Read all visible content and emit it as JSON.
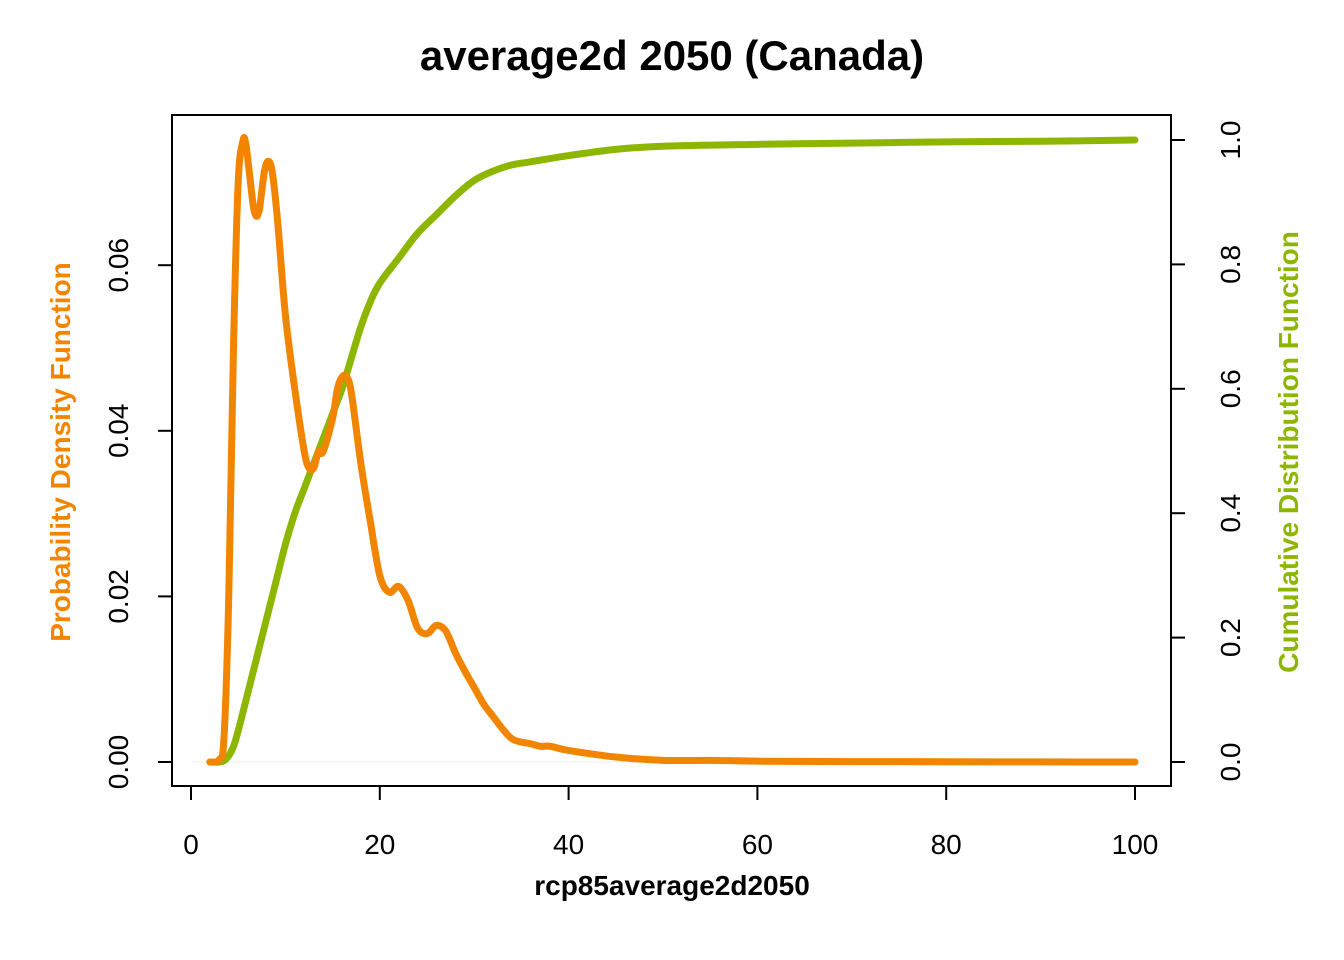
{
  "chart_data": {
    "type": "line",
    "title": "average2d 2050 (Canada)",
    "xlabel": "rcp85average2d2050",
    "ylabel_left": "Probability Density Function",
    "ylabel_right": "Cumulative Distribution Function",
    "colors": {
      "pdf": "#F28500",
      "cdf": "#8DB600",
      "axis": "#000000"
    },
    "xlim": [
      0,
      100
    ],
    "ylim_left": [
      0,
      0.075
    ],
    "ylim_right": [
      0,
      1.0
    ],
    "x_ticks": [
      "0",
      "20",
      "40",
      "60",
      "80",
      "100"
    ],
    "y_ticks_left": [
      "0.00",
      "0.02",
      "0.04",
      "0.06"
    ],
    "y_ticks_right": [
      "0.0",
      "0.2",
      "0.4",
      "0.6",
      "0.8",
      "1.0"
    ],
    "grid": false,
    "series": [
      {
        "name": "Probability Density Function",
        "axis": "left",
        "x": [
          2,
          3,
          3.5,
          4,
          4.5,
          5,
          5.5,
          5.8,
          6.2,
          6.7,
          7.2,
          7.8,
          8.3,
          8.7,
          9.2,
          10,
          11,
          12,
          12.5,
          13,
          13.5,
          14,
          15,
          15.5,
          16,
          16.5,
          17,
          18,
          19,
          20,
          21,
          22,
          23,
          24,
          25,
          26,
          27,
          28,
          29,
          30,
          31,
          32,
          33,
          34,
          35,
          36,
          37,
          38,
          40,
          45,
          50,
          55,
          60,
          70,
          80,
          90,
          100
        ],
        "y": [
          0,
          0.0003,
          0.003,
          0.02,
          0.05,
          0.07,
          0.075,
          0.0747,
          0.071,
          0.0665,
          0.0665,
          0.0715,
          0.0725,
          0.0705,
          0.065,
          0.054,
          0.045,
          0.0375,
          0.0355,
          0.0355,
          0.0375,
          0.0375,
          0.0415,
          0.045,
          0.0465,
          0.0465,
          0.0445,
          0.036,
          0.029,
          0.0225,
          0.0205,
          0.0212,
          0.0195,
          0.0162,
          0.0155,
          0.0165,
          0.0158,
          0.0132,
          0.011,
          0.009,
          0.007,
          0.0055,
          0.004,
          0.0028,
          0.0024,
          0.0022,
          0.0019,
          0.0019,
          0.0014,
          0.0006,
          0.0002,
          0.0002,
          0.0001,
          5e-05,
          3e-05,
          1e-05,
          0
        ]
      },
      {
        "name": "Cumulative Distribution Function",
        "axis": "right",
        "x": [
          2,
          3,
          3.5,
          4,
          4.5,
          5,
          6,
          7,
          8,
          9,
          10,
          11,
          12,
          13,
          14,
          15,
          16,
          17,
          18,
          19,
          20,
          22,
          24,
          26,
          28,
          30,
          32,
          34,
          36,
          40,
          45,
          50,
          60,
          70,
          80,
          90,
          100
        ],
        "y": [
          0,
          0,
          0.002,
          0.01,
          0.025,
          0.05,
          0.11,
          0.17,
          0.23,
          0.29,
          0.35,
          0.4,
          0.44,
          0.48,
          0.52,
          0.56,
          0.6,
          0.65,
          0.7,
          0.74,
          0.77,
          0.81,
          0.85,
          0.88,
          0.91,
          0.935,
          0.95,
          0.96,
          0.965,
          0.975,
          0.985,
          0.99,
          0.993,
          0.995,
          0.997,
          0.998,
          1.0
        ]
      }
    ]
  }
}
